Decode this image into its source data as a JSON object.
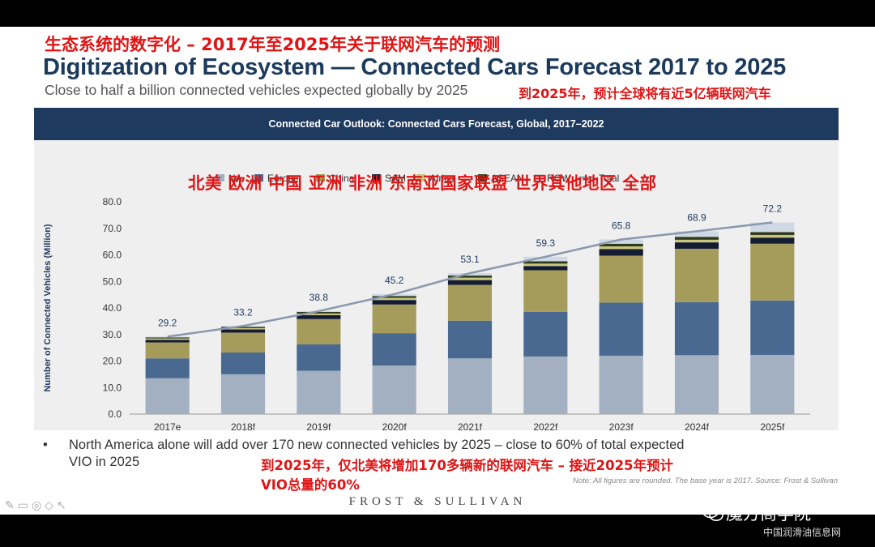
{
  "slide": {
    "cn_title": "生态系统的数字化 – 2017年至2025年关于联网汽车的预测",
    "title": "Digitization of Ecosystem — Connected Cars Forecast 2017 to 2025",
    "subtitle": "Close to half a billion connected vehicles expected globally  by 2025",
    "subtitle_cn": "到2025年，预计全球将有近5亿辆联网汽车",
    "chart_header": "Connected Car Outlook: Connected Cars Forecast, Global, 2017–2022",
    "legend_cn": "北美  欧洲  中国  亚洲  非洲  东南亚国家联盟  世界其他地区  全部",
    "bullet_dot": "•",
    "bullet_text": "North America alone will add over 170 new connected vehicles by 2025 – close to 60% of total expected VIO in 2025",
    "bullet_cn_line1": "到2025年，仅北美将增加170多辆新的联网汽车 – 接近2025年预计",
    "bullet_cn_line2": "VIO总量的60%",
    "note": "Note: All figures are rounded. The base year is 2017. Source: Frost & Sullivan",
    "brand": "FROST & SULLIVAN",
    "toolbar_glyphs": "✎▭◎◇↖"
  },
  "watermark": {
    "label": "魔方商学院",
    "sub": "中国润滑油信息网"
  },
  "chart_data": {
    "type": "bar",
    "stacked": true,
    "title": "Connected Car Outlook: Connected Cars Forecast, Global, 2017–2022",
    "xlabel": "",
    "ylabel": "Number of Connected Vehicles (Million)",
    "ylim": [
      0,
      80
    ],
    "yticks": [
      "0.0",
      "10.0",
      "20.0",
      "30.0",
      "40.0",
      "50.0",
      "60.0",
      "70.0",
      "80.0"
    ],
    "categories": [
      "2017e",
      "2018f",
      "2019f",
      "2020f",
      "2021f",
      "2022f",
      "2023f",
      "2024f",
      "2025f"
    ],
    "series": [
      {
        "name": "NA",
        "color": "#a3b0c2",
        "values": [
          13.5,
          15.0,
          16.3,
          18.3,
          21.0,
          21.7,
          22.0,
          22.2,
          22.3
        ]
      },
      {
        "name": "Europe",
        "color": "#4a6991",
        "values": [
          7.5,
          8.2,
          10.0,
          12.2,
          14.2,
          16.8,
          20.0,
          20.0,
          20.5
        ]
      },
      {
        "name": "China",
        "color": "#a59c5b",
        "values": [
          6.0,
          7.5,
          9.5,
          10.8,
          13.5,
          15.7,
          17.7,
          20.1,
          21.4
        ]
      },
      {
        "name": "SAM",
        "color": "#141c33",
        "values": [
          1.0,
          1.2,
          1.5,
          1.7,
          1.8,
          1.6,
          2.5,
          2.4,
          2.3
        ]
      },
      {
        "name": "Africa",
        "color": "#c9c57f",
        "values": [
          0.5,
          0.5,
          0.6,
          0.8,
          0.9,
          0.9,
          1.0,
          1.0,
          1.0
        ]
      },
      {
        "name": "ASEAN",
        "color": "#2e3a1c",
        "values": [
          0.4,
          0.5,
          0.6,
          0.7,
          0.8,
          0.9,
          1.0,
          1.1,
          1.1
        ]
      },
      {
        "name": "ROW",
        "color": "#cfd9e6",
        "values": [
          0.3,
          0.3,
          0.3,
          0.7,
          0.9,
          1.7,
          1.6,
          2.1,
          3.6
        ]
      }
    ],
    "total": {
      "name": "Total",
      "color": "#8a98ad",
      "values": [
        29.2,
        33.2,
        38.8,
        45.2,
        53.1,
        59.3,
        65.8,
        68.9,
        72.2
      ]
    },
    "total_labels": [
      "29.2",
      "33.2",
      "38.8",
      "45.2",
      "53.1",
      "59.3",
      "65.8",
      "68.9",
      "72.2"
    ],
    "legend_position": "top"
  }
}
